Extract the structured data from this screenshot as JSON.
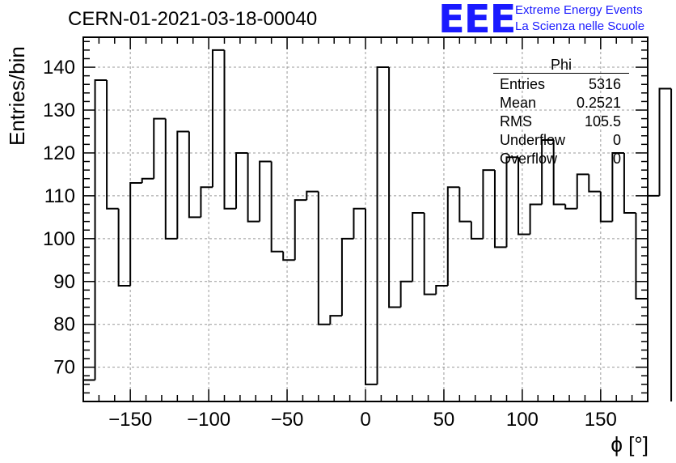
{
  "header": {
    "title": "CERN-01-2021-03-18-00040",
    "logo_text": "EEE",
    "logo_line1": "Extreme Energy Events",
    "logo_line2": "La Scienza nelle Scuole"
  },
  "stats_box": {
    "title": "Phi",
    "rows": [
      {
        "label": "Entries",
        "value": "5316"
      },
      {
        "label": "Mean",
        "value": "0.2521"
      },
      {
        "label": "RMS",
        "value": "105.5"
      },
      {
        "label": "Underflow",
        "value": "0"
      },
      {
        "label": "Overflow",
        "value": "0"
      }
    ]
  },
  "chart_data": {
    "type": "bar",
    "style": "step-histogram",
    "title": "CERN-01-2021-03-18-00040",
    "xlabel": "ϕ [°]",
    "ylabel": "Entries/bin",
    "xlim": [
      -180,
      180
    ],
    "ylim": [
      62,
      147
    ],
    "grid": true,
    "line_color": "#000000",
    "x_ticks": [
      -150,
      -100,
      -50,
      0,
      50,
      100,
      150
    ],
    "x_tick_labels": [
      "−150",
      "−100",
      "−50",
      "0",
      "50",
      "100",
      "150"
    ],
    "y_ticks": [
      70,
      80,
      90,
      100,
      110,
      120,
      130,
      140
    ],
    "y_tick_labels": [
      "70",
      "80",
      "90",
      "100",
      "110",
      "120",
      "130",
      "140"
    ],
    "bin_edges_start": -180,
    "bin_width": 7.5,
    "values": [
      67,
      137,
      107,
      89,
      113,
      114,
      128,
      100,
      125,
      105,
      112,
      144,
      107,
      120,
      104,
      118,
      97,
      95,
      109,
      111,
      80,
      82,
      100,
      107,
      66,
      140,
      84,
      90,
      106,
      87,
      89,
      112,
      104,
      100,
      116,
      98,
      119,
      101,
      108,
      123,
      108,
      107,
      115,
      111,
      104,
      120,
      106,
      86,
      110,
      135
    ]
  }
}
